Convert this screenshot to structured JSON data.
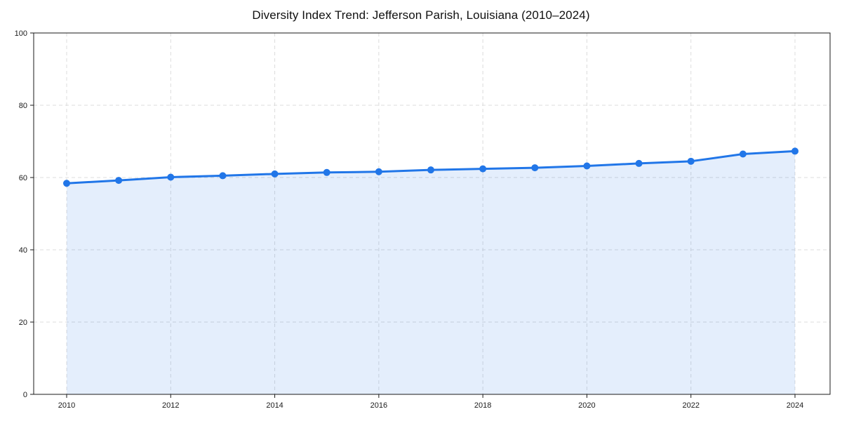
{
  "page": {
    "background_color": "#ffffff"
  },
  "chart_data": {
    "type": "area",
    "title": "Diversity Index Trend: Jefferson Parish, Louisiana (2010–2024)",
    "x": [
      2010,
      2011,
      2012,
      2013,
      2014,
      2015,
      2016,
      2017,
      2018,
      2019,
      2020,
      2021,
      2022,
      2023,
      2024
    ],
    "values": [
      58.4,
      59.2,
      60.1,
      60.5,
      61.0,
      61.4,
      61.6,
      62.1,
      62.4,
      62.7,
      63.2,
      63.9,
      64.5,
      66.5,
      67.3
    ],
    "ylim": [
      0,
      100
    ],
    "yticks": [
      0,
      20,
      40,
      60,
      80,
      100
    ],
    "xticks": [
      2010,
      2012,
      2014,
      2016,
      2018,
      2020,
      2022,
      2024
    ],
    "grid": true,
    "grid_style": "dashed",
    "legend": "none",
    "line_color": "#2176e8",
    "fill_color": "#2176e8",
    "fill_opacity": 0.12,
    "marker": "circle",
    "marker_radius": 5,
    "line_width": 3,
    "grid_color": "#dcdcdc",
    "spine_color": "#1a1a1a",
    "tick_label_color": "#1a1a1a",
    "title_color": "#111111"
  }
}
